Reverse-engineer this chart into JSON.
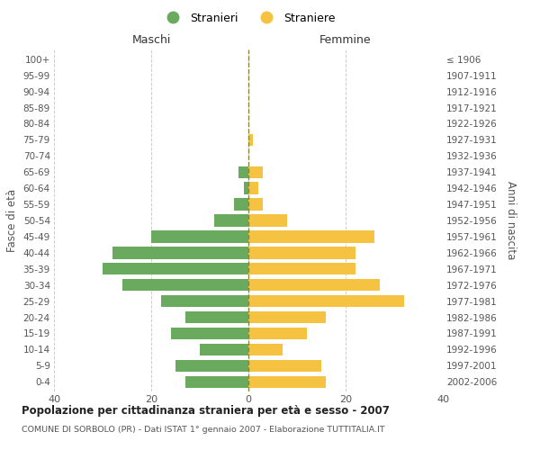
{
  "age_groups": [
    "0-4",
    "5-9",
    "10-14",
    "15-19",
    "20-24",
    "25-29",
    "30-34",
    "35-39",
    "40-44",
    "45-49",
    "50-54",
    "55-59",
    "60-64",
    "65-69",
    "70-74",
    "75-79",
    "80-84",
    "85-89",
    "90-94",
    "95-99",
    "100+"
  ],
  "birth_years": [
    "2002-2006",
    "1997-2001",
    "1992-1996",
    "1987-1991",
    "1982-1986",
    "1977-1981",
    "1972-1976",
    "1967-1971",
    "1962-1966",
    "1957-1961",
    "1952-1956",
    "1947-1951",
    "1942-1946",
    "1937-1941",
    "1932-1936",
    "1927-1931",
    "1922-1926",
    "1917-1921",
    "1912-1916",
    "1907-1911",
    "≤ 1906"
  ],
  "maschi": [
    13,
    15,
    10,
    16,
    13,
    18,
    26,
    30,
    28,
    20,
    7,
    3,
    1,
    2,
    0,
    0,
    0,
    0,
    0,
    0,
    0
  ],
  "femmine": [
    16,
    15,
    7,
    12,
    16,
    32,
    27,
    22,
    22,
    26,
    8,
    3,
    2,
    3,
    0,
    1,
    0,
    0,
    0,
    0,
    0
  ],
  "male_color": "#6aaa5e",
  "female_color": "#f5c242",
  "xlim": 40,
  "title": "Popolazione per cittadinanza straniera per età e sesso - 2007",
  "subtitle": "COMUNE DI SORBOLO (PR) - Dati ISTAT 1° gennaio 2007 - Elaborazione TUTTITALIA.IT",
  "xlabel_left": "Maschi",
  "xlabel_right": "Femmine",
  "ylabel_left": "Fasce di età",
  "ylabel_right": "Anni di nascita",
  "legend_male": "Stranieri",
  "legend_female": "Straniere",
  "background_color": "#ffffff",
  "grid_color": "#cccccc",
  "bar_height": 0.75
}
